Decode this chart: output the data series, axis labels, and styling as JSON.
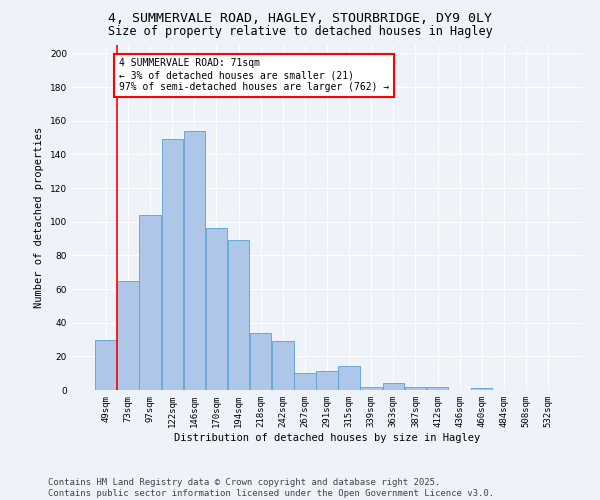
{
  "title_line1": "4, SUMMERVALE ROAD, HAGLEY, STOURBRIDGE, DY9 0LY",
  "title_line2": "Size of property relative to detached houses in Hagley",
  "xlabel": "Distribution of detached houses by size in Hagley",
  "ylabel": "Number of detached properties",
  "bar_labels": [
    "49sqm",
    "73sqm",
    "97sqm",
    "122sqm",
    "146sqm",
    "170sqm",
    "194sqm",
    "218sqm",
    "242sqm",
    "267sqm",
    "291sqm",
    "315sqm",
    "339sqm",
    "363sqm",
    "387sqm",
    "412sqm",
    "436sqm",
    "460sqm",
    "484sqm",
    "508sqm",
    "532sqm"
  ],
  "bar_values": [
    30,
    65,
    104,
    149,
    154,
    96,
    89,
    34,
    29,
    10,
    11,
    14,
    2,
    4,
    2,
    2,
    0,
    1,
    0,
    0,
    0
  ],
  "bar_color": "#aec6e8",
  "bar_edge_color": "#5a9fd4",
  "annotation_text": "4 SUMMERVALE ROAD: 71sqm\n← 3% of detached houses are smaller (21)\n97% of semi-detached houses are larger (762) →",
  "annotation_box_color": "white",
  "annotation_box_edge_color": "red",
  "red_line_x": 0.5,
  "ylim": [
    0,
    205
  ],
  "yticks": [
    0,
    20,
    40,
    60,
    80,
    100,
    120,
    140,
    160,
    180,
    200
  ],
  "background_color": "#eef2f9",
  "grid_color": "white",
  "footer_line1": "Contains HM Land Registry data © Crown copyright and database right 2025.",
  "footer_line2": "Contains public sector information licensed under the Open Government Licence v3.0.",
  "title_fontsize": 9.5,
  "subtitle_fontsize": 8.5,
  "axis_label_fontsize": 7.5,
  "tick_fontsize": 6.5,
  "annotation_fontsize": 7,
  "footer_fontsize": 6.5
}
